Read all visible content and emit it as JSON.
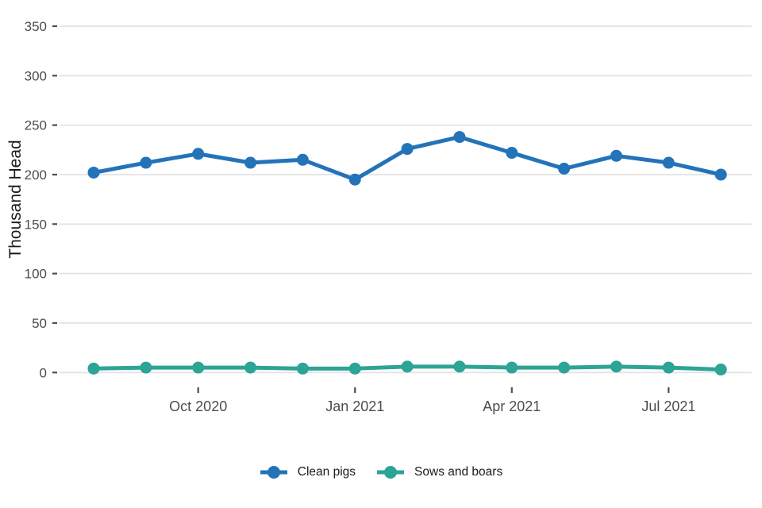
{
  "chart_data": {
    "type": "line",
    "title": "",
    "xlabel": "",
    "ylabel": "Thousand Head",
    "x": [
      "Aug 2020",
      "Sep 2020",
      "Oct 2020",
      "Nov 2020",
      "Dec 2020",
      "Jan 2021",
      "Feb 2021",
      "Mar 2021",
      "Apr 2021",
      "May 2021",
      "Jun 2021",
      "Jul 2021",
      "Aug 2021"
    ],
    "series": [
      {
        "name": "Clean pigs",
        "color": "#2373b9",
        "values": [
          202,
          212,
          221,
          212,
          215,
          195,
          226,
          238,
          222,
          206,
          219,
          212,
          200
        ]
      },
      {
        "name": "Sows and boars",
        "color": "#2ca496",
        "values": [
          4,
          5,
          5,
          5,
          4,
          4,
          6,
          6,
          5,
          5,
          6,
          5,
          3
        ]
      }
    ],
    "y_ticks": [
      0,
      50,
      100,
      150,
      200,
      250,
      300,
      350
    ],
    "x_tick_labels": [
      "Oct 2020",
      "Jan 2021",
      "Apr 2021",
      "Jul 2021"
    ],
    "x_tick_indices": [
      2,
      5,
      8,
      11
    ],
    "ylim": [
      0,
      365
    ],
    "grid": "horizontal-only",
    "legend_position": "bottom-center"
  },
  "colors": {
    "grid_line": "#e3e3e3",
    "tick_mark": "#4d4d4d",
    "tick_label": "#4d4d4d",
    "axis_title": "#1a1a1a",
    "legend_text": "#1a1a1a",
    "background": "#ffffff"
  }
}
